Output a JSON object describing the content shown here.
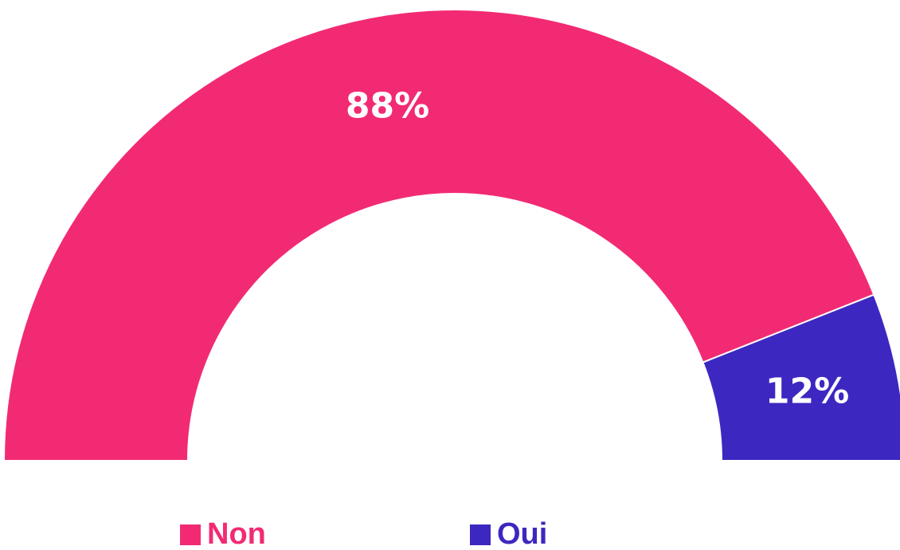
{
  "chart_data": {
    "type": "semi-donut",
    "categories": [
      "Non",
      "Oui"
    ],
    "values": [
      88,
      12
    ],
    "value_labels": [
      "88%",
      "12%"
    ],
    "colors": [
      "#f22a74",
      "#3c28c0"
    ],
    "legend": "bottom"
  }
}
